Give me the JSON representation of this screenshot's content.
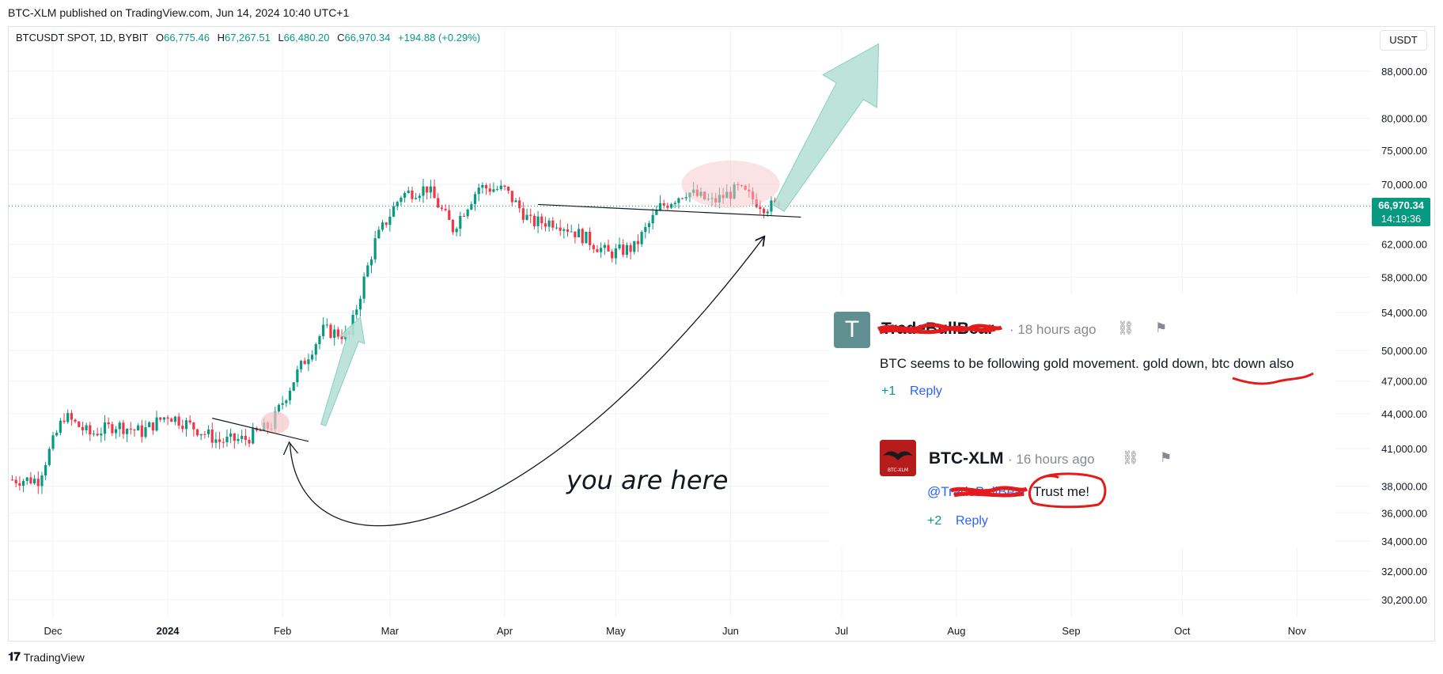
{
  "header": {
    "publish_line": "BTC-XLM published on TradingView.com, Jun 14, 2024 10:40 UTC+1"
  },
  "symbol_info": {
    "symbol": "BTCUSDT SPOT, 1D, BYBIT",
    "open_label": "O",
    "open": "66,775.46",
    "high_label": "H",
    "high": "67,267.51",
    "low_label": "L",
    "low": "66,480.20",
    "close_label": "C",
    "close": "66,970.34",
    "change": "+194.88 (+0.29%)"
  },
  "currency_button": "USDT",
  "price_tag": {
    "price": "66,970.34",
    "countdown": "14:19:36"
  },
  "annotation_text": "you are here",
  "comments": [
    {
      "author": "TradeBullBear",
      "avatar_letter": "T",
      "time": "18 hours ago",
      "text": "BTC seems to be following gold movement. gold down, btc down also",
      "votes": "+1",
      "reply_label": "Reply"
    },
    {
      "author": "BTC-XLM",
      "avatar_label": "BTC-XLM",
      "time": "16 hours ago",
      "mention": "@TradeBullBear",
      "text": "Trust me!",
      "votes": "+2",
      "reply_label": "Reply"
    }
  ],
  "footer": {
    "brand": "TradingView"
  },
  "colors": {
    "up": "#089981",
    "down": "#f23645",
    "arrow_fill": "#b6e0d6",
    "highlight": "#f7c6c9",
    "scribble": "#e31b1b",
    "accent_link": "#2962ff"
  },
  "chart_data": {
    "type": "candlestick",
    "x_tick_labels": [
      "Dec",
      "2024",
      "Feb",
      "Mar",
      "Apr",
      "May",
      "Jun",
      "Jul",
      "Aug",
      "Sep",
      "Oct",
      "Nov"
    ],
    "y_tick_labels": [
      "88,000.00",
      "80,000.00",
      "75,000.00",
      "70,000.00",
      "62,000.00",
      "58,000.00",
      "54,000.00",
      "50,000.00",
      "47,000.00",
      "44,000.00",
      "41,000.00",
      "38,000.00",
      "36,000.00",
      "34,000.00",
      "32,000.00",
      "30,200.00"
    ],
    "y_scale": "log",
    "grid": true,
    "last_price": 66970.34,
    "weekly_closes": [
      {
        "week": "2023-11-27",
        "close": 38500
      },
      {
        "week": "2023-12-04",
        "close": 43800
      },
      {
        "week": "2023-12-11",
        "close": 42200
      },
      {
        "week": "2023-12-18",
        "close": 43000
      },
      {
        "week": "2023-12-25",
        "close": 42400
      },
      {
        "week": "2024-01-01",
        "close": 43900
      },
      {
        "week": "2024-01-08",
        "close": 42800
      },
      {
        "week": "2024-01-15",
        "close": 41600
      },
      {
        "week": "2024-01-22",
        "close": 41800
      },
      {
        "week": "2024-01-29",
        "close": 43000
      },
      {
        "week": "2024-02-05",
        "close": 47800
      },
      {
        "week": "2024-02-12",
        "close": 52100
      },
      {
        "week": "2024-02-19",
        "close": 51500
      },
      {
        "week": "2024-02-26",
        "close": 62300
      },
      {
        "week": "2024-03-04",
        "close": 68500
      },
      {
        "week": "2024-03-11",
        "close": 69500
      },
      {
        "week": "2024-03-18",
        "close": 64000
      },
      {
        "week": "2024-03-25",
        "close": 69600
      },
      {
        "week": "2024-04-01",
        "close": 69200
      },
      {
        "week": "2024-04-08",
        "close": 64800
      },
      {
        "week": "2024-04-15",
        "close": 64900
      },
      {
        "week": "2024-04-22",
        "close": 63000
      },
      {
        "week": "2024-04-29",
        "close": 60800
      },
      {
        "week": "2024-05-06",
        "close": 61600
      },
      {
        "week": "2024-05-13",
        "close": 66800
      },
      {
        "week": "2024-05-20",
        "close": 69000
      },
      {
        "week": "2024-05-27",
        "close": 67500
      },
      {
        "week": "2024-06-03",
        "close": 69300
      },
      {
        "week": "2024-06-10",
        "close": 66970
      }
    ]
  }
}
